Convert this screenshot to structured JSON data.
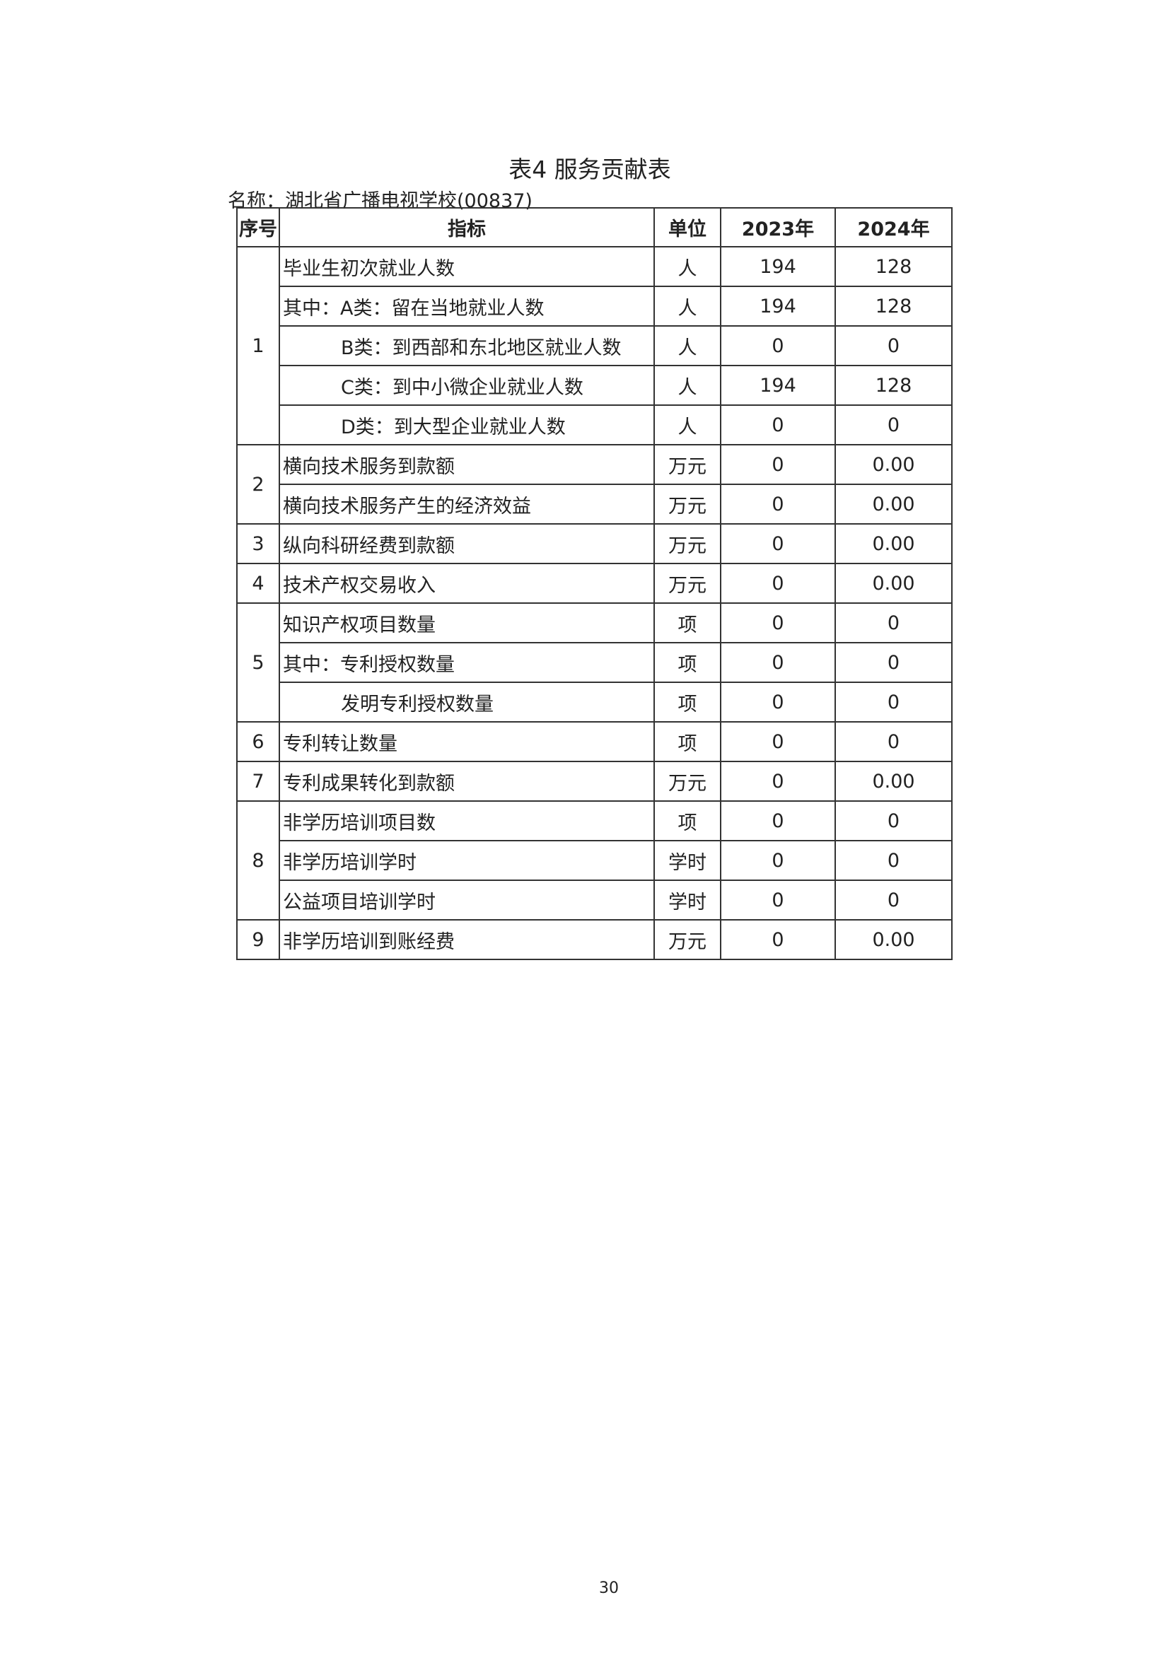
{
  "title": "表4 服务贡献表",
  "org_name": "名称：湖北省广播电视学校(00837)",
  "table": {
    "headers": [
      "序号",
      "指标",
      "单位",
      "2023年",
      "2024年"
    ],
    "groups": [
      {
        "no": "1",
        "rows": [
          {
            "indicator": "毕业生初次就业人数",
            "unit": "人",
            "y2023": "194",
            "y2024": "128",
            "sub": false
          },
          {
            "indicator": "其中：A类：留在当地就业人数",
            "unit": "人",
            "y2023": "194",
            "y2024": "128",
            "sub": false
          },
          {
            "indicator": "B类：到西部和东北地区就业人数",
            "unit": "人",
            "y2023": "0",
            "y2024": "0",
            "sub": true
          },
          {
            "indicator": "C类：到中小微企业就业人数",
            "unit": "人",
            "y2023": "194",
            "y2024": "128",
            "sub": true
          },
          {
            "indicator": "D类：到大型企业就业人数",
            "unit": "人",
            "y2023": "0",
            "y2024": "0",
            "sub": true
          }
        ]
      },
      {
        "no": "2",
        "rows": [
          {
            "indicator": "横向技术服务到款额",
            "unit": "万元",
            "y2023": "0",
            "y2024": "0.00",
            "sub": false
          },
          {
            "indicator": "横向技术服务产生的经济效益",
            "unit": "万元",
            "y2023": "0",
            "y2024": "0.00",
            "sub": false
          }
        ]
      },
      {
        "no": "3",
        "rows": [
          {
            "indicator": "纵向科研经费到款额",
            "unit": "万元",
            "y2023": "0",
            "y2024": "0.00",
            "sub": false
          }
        ]
      },
      {
        "no": "4",
        "rows": [
          {
            "indicator": "技术产权交易收入",
            "unit": "万元",
            "y2023": "0",
            "y2024": "0.00",
            "sub": false
          }
        ]
      },
      {
        "no": "5",
        "rows": [
          {
            "indicator": "知识产权项目数量",
            "unit": "项",
            "y2023": "0",
            "y2024": "0",
            "sub": false
          },
          {
            "indicator": "其中：专利授权数量",
            "unit": "项",
            "y2023": "0",
            "y2024": "0",
            "sub": false
          },
          {
            "indicator": "发明专利授权数量",
            "unit": "项",
            "y2023": "0",
            "y2024": "0",
            "sub": true
          }
        ]
      },
      {
        "no": "6",
        "rows": [
          {
            "indicator": "专利转让数量",
            "unit": "项",
            "y2023": "0",
            "y2024": "0",
            "sub": false
          }
        ]
      },
      {
        "no": "7",
        "rows": [
          {
            "indicator": "专利成果转化到款额",
            "unit": "万元",
            "y2023": "0",
            "y2024": "0.00",
            "sub": false
          }
        ]
      },
      {
        "no": "8",
        "rows": [
          {
            "indicator": "非学历培训项目数",
            "unit": "项",
            "y2023": "0",
            "y2024": "0",
            "sub": false
          },
          {
            "indicator": "非学历培训学时",
            "unit": "学时",
            "y2023": "0",
            "y2024": "0",
            "sub": false
          },
          {
            "indicator": "公益项目培训学时",
            "unit": "学时",
            "y2023": "0",
            "y2024": "0",
            "sub": false
          }
        ]
      },
      {
        "no": "9",
        "rows": [
          {
            "indicator": "非学历培训到账经费",
            "unit": "万元",
            "y2023": "0",
            "y2024": "0.00",
            "sub": false
          }
        ]
      }
    ]
  },
  "page_number": "30"
}
